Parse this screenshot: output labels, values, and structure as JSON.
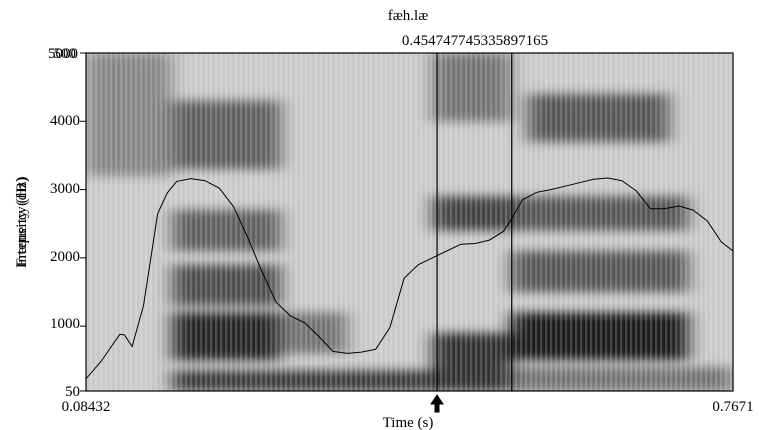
{
  "chart_data": {
    "type": "spectrogram",
    "title": "fæh.læ",
    "xlabel": "Time (s)",
    "ylabel_overlap": [
      "Frequency (Hz)",
      "Intensity (dB)"
    ],
    "x_range": [
      0.08432,
      0.7671
    ],
    "x_tick_labels": [
      "0.08432",
      "0.7671"
    ],
    "y_range": [
      50,
      5000
    ],
    "y_ticks": [
      50,
      1000,
      2000,
      3000,
      4000,
      5000
    ],
    "y_tick_labels_left": [
      "5000",
      "4000",
      "3000",
      "2000",
      "1000",
      "50"
    ],
    "y_tick_label_top_overlap": "500",
    "cursor_markers": [
      {
        "time": 0.4547477413,
        "label": "0.4547477"
      },
      {
        "time": 0.5335897165,
        "label": "0.5335897165"
      }
    ],
    "cursor_label_text": "0.454747745335897165",
    "arrow_marker_time": 0.4547477413,
    "spectrogram_dark_bands": [
      {
        "t0": 0.175,
        "t1": 0.29,
        "f0": 500,
        "f1": 1200,
        "level": 0.85
      },
      {
        "t0": 0.175,
        "t1": 0.29,
        "f0": 1300,
        "f1": 1900,
        "level": 0.65
      },
      {
        "t0": 0.175,
        "t1": 0.29,
        "f0": 2100,
        "f1": 2700,
        "level": 0.55
      },
      {
        "t0": 0.175,
        "t1": 0.29,
        "f0": 3300,
        "f1": 4300,
        "level": 0.55
      },
      {
        "t0": 0.175,
        "t1": 0.45,
        "f0": 50,
        "f1": 350,
        "level": 0.75
      },
      {
        "t0": 0.29,
        "t1": 0.36,
        "f0": 600,
        "f1": 1200,
        "level": 0.45
      },
      {
        "t0": 0.45,
        "t1": 0.533,
        "f0": 50,
        "f1": 900,
        "level": 0.8
      },
      {
        "t0": 0.45,
        "t1": 0.533,
        "f0": 2400,
        "f1": 2900,
        "level": 0.7
      },
      {
        "t0": 0.45,
        "t1": 0.533,
        "f0": 4000,
        "f1": 5000,
        "level": 0.45
      },
      {
        "t0": 0.533,
        "t1": 0.72,
        "f0": 500,
        "f1": 1200,
        "level": 0.9
      },
      {
        "t0": 0.533,
        "t1": 0.72,
        "f0": 1500,
        "f1": 2100,
        "level": 0.6
      },
      {
        "t0": 0.533,
        "t1": 0.72,
        "f0": 2400,
        "f1": 2900,
        "level": 0.6
      },
      {
        "t0": 0.55,
        "t1": 0.7,
        "f0": 3700,
        "f1": 4400,
        "level": 0.6
      },
      {
        "t0": 0.08432,
        "t1": 0.175,
        "f0": 3200,
        "f1": 5000,
        "level": 0.35
      },
      {
        "t0": 0.533,
        "t1": 0.7671,
        "f0": 50,
        "f1": 400,
        "level": 0.45
      }
    ],
    "intensity_contour": {
      "times": [
        0.08432,
        0.1,
        0.12,
        0.125,
        0.133,
        0.145,
        0.16,
        0.17,
        0.18,
        0.195,
        0.21,
        0.225,
        0.24,
        0.255,
        0.27,
        0.285,
        0.3,
        0.315,
        0.33,
        0.345,
        0.36,
        0.375,
        0.39,
        0.405,
        0.42,
        0.435,
        0.45,
        0.465,
        0.48,
        0.495,
        0.51,
        0.525,
        0.533,
        0.545,
        0.56,
        0.575,
        0.59,
        0.605,
        0.62,
        0.635,
        0.65,
        0.665,
        0.68,
        0.695,
        0.71,
        0.725,
        0.74,
        0.755,
        0.7671
      ],
      "freq_scale_values": [
        230,
        480,
        880,
        870,
        700,
        1300,
        2650,
        2950,
        3120,
        3160,
        3130,
        3020,
        2750,
        2300,
        1800,
        1350,
        1150,
        1050,
        850,
        630,
        600,
        620,
        660,
        980,
        1700,
        1900,
        2000,
        2100,
        2200,
        2210,
        2260,
        2390,
        2560,
        2850,
        2960,
        3000,
        3050,
        3100,
        3150,
        3170,
        3130,
        2980,
        2720,
        2720,
        2760,
        2700,
        2540,
        2230,
        2100
      ]
    },
    "grid": false
  }
}
